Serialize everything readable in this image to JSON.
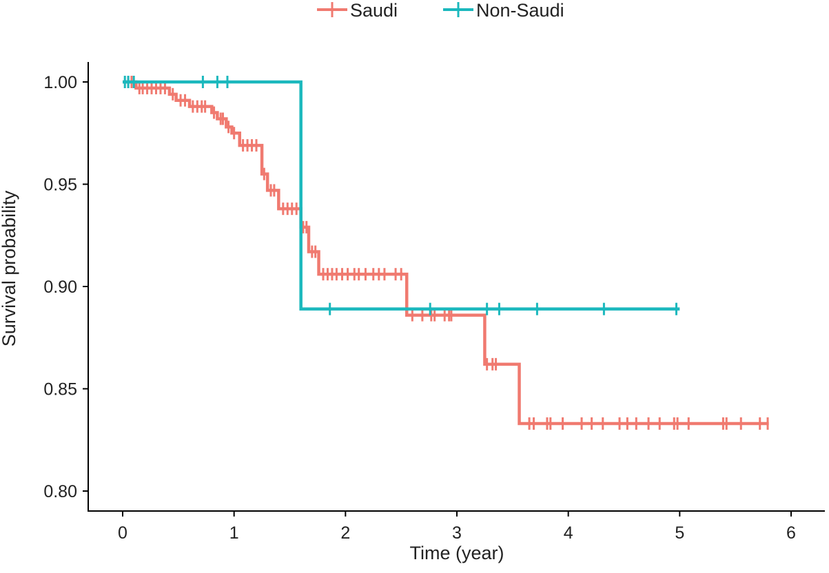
{
  "chart_data": {
    "type": "line",
    "subtype": "kaplan-meier",
    "title": "",
    "xlabel": "Time (year)",
    "ylabel": "Survival probability",
    "xlim": [
      0,
      6
    ],
    "ylim": [
      0.8,
      1.0
    ],
    "xticks": [
      "0",
      "1",
      "2",
      "3",
      "4",
      "5",
      "6"
    ],
    "yticks": [
      "0.80",
      "0.85",
      "0.90",
      "0.95",
      "1.00"
    ],
    "legend_position": "top",
    "grid": false,
    "series": [
      {
        "name": "Saudi",
        "color": "#F07A70",
        "end_time": 5.8,
        "steps": [
          [
            0,
            1.0
          ],
          [
            0.12,
            0.997
          ],
          [
            0.42,
            0.994
          ],
          [
            0.48,
            0.991
          ],
          [
            0.6,
            0.988
          ],
          [
            0.8,
            0.985
          ],
          [
            0.85,
            0.982
          ],
          [
            0.93,
            0.978
          ],
          [
            0.98,
            0.975
          ],
          [
            1.05,
            0.969
          ],
          [
            1.25,
            0.955
          ],
          [
            1.3,
            0.947
          ],
          [
            1.4,
            0.938
          ],
          [
            1.6,
            0.929
          ],
          [
            1.67,
            0.917
          ],
          [
            1.76,
            0.906
          ],
          [
            2.55,
            0.886
          ],
          [
            3.25,
            0.862
          ],
          [
            3.56,
            0.833
          ]
        ],
        "censored": [
          0.05,
          0.08,
          0.15,
          0.18,
          0.22,
          0.26,
          0.3,
          0.34,
          0.38,
          0.45,
          0.52,
          0.56,
          0.63,
          0.67,
          0.71,
          0.74,
          0.82,
          0.88,
          0.9,
          0.95,
          1.0,
          1.08,
          1.12,
          1.16,
          1.2,
          1.27,
          1.33,
          1.36,
          1.44,
          1.48,
          1.52,
          1.56,
          1.62,
          1.65,
          1.7,
          1.73,
          1.8,
          1.84,
          1.88,
          1.92,
          1.97,
          2.02,
          2.08,
          2.12,
          2.18,
          2.25,
          2.3,
          2.35,
          2.45,
          2.5,
          2.6,
          2.69,
          2.77,
          2.8,
          2.89,
          2.93,
          2.95,
          3.27,
          3.32,
          3.35,
          3.65,
          3.69,
          3.81,
          3.84,
          3.95,
          4.12,
          4.21,
          4.31,
          4.46,
          4.53,
          4.61,
          4.72,
          4.82,
          4.95,
          4.98,
          5.08,
          5.39,
          5.42,
          5.55,
          5.72,
          5.79
        ]
      },
      {
        "name": "Non-Saudi",
        "color": "#1BB8BD",
        "end_time": 5.0,
        "steps": [
          [
            0,
            1.0
          ],
          [
            1.6,
            0.889
          ]
        ],
        "censored": [
          0.02,
          0.05,
          0.1,
          0.72,
          0.85,
          0.94,
          1.86,
          2.76,
          3.27,
          3.38,
          3.72,
          4.32,
          4.97
        ]
      }
    ]
  }
}
